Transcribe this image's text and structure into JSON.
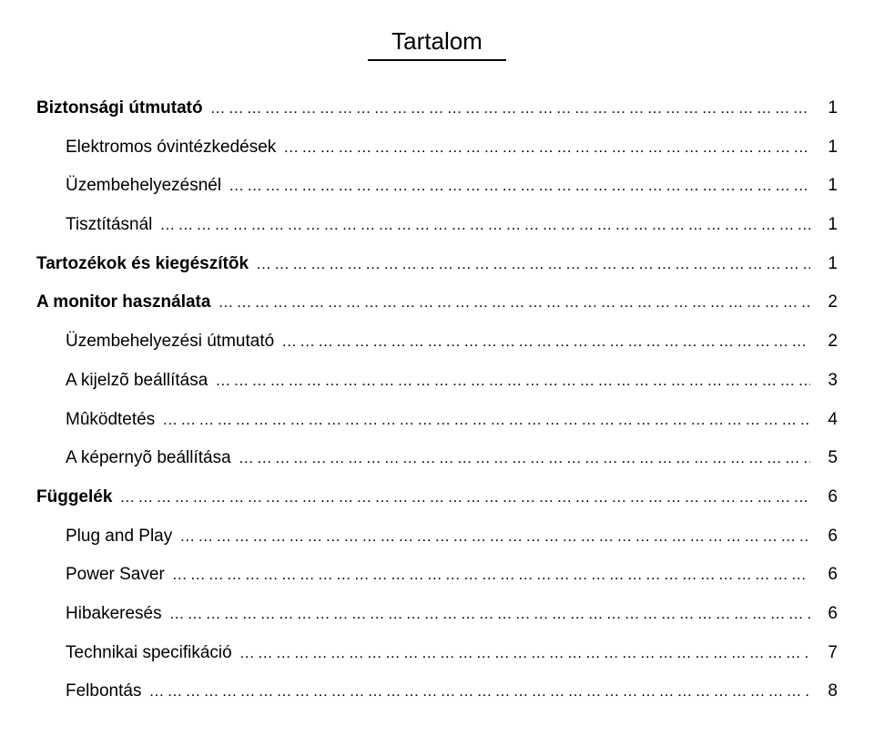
{
  "title": "Tartalom",
  "dots": "…………………………………………………………………………………………………………………………………………………………………………………………………………",
  "toc": [
    {
      "label": "Biztonsági útmutató",
      "page": "1",
      "level": 0,
      "bold": true,
      "name": "toc-safety-guide"
    },
    {
      "label": "Elektromos óvintézkedések",
      "page": "1",
      "level": 1,
      "bold": false,
      "name": "toc-electrical-precautions"
    },
    {
      "label": "Üzembehelyezésnél",
      "page": "1",
      "level": 1,
      "bold": false,
      "name": "toc-during-installation"
    },
    {
      "label": "Tisztításnál",
      "page": "1",
      "level": 1,
      "bold": false,
      "name": "toc-during-cleaning"
    },
    {
      "label": "Tartozékok és kiegészítõk",
      "page": "1",
      "level": 0,
      "bold": true,
      "name": "toc-accessories"
    },
    {
      "label": "A monitor használata",
      "page": "2",
      "level": 0,
      "bold": true,
      "name": "toc-monitor-usage"
    },
    {
      "label": "Üzembehelyezési útmutató",
      "page": "2",
      "level": 1,
      "bold": false,
      "name": "toc-installation-guide"
    },
    {
      "label": "A kijelzõ beállítása",
      "page": "3",
      "level": 1,
      "bold": false,
      "name": "toc-display-settings"
    },
    {
      "label": "Mûködtetés",
      "page": "4",
      "level": 1,
      "bold": false,
      "name": "toc-operation"
    },
    {
      "label": "A képernyõ beállítása",
      "page": "5",
      "level": 1,
      "bold": false,
      "name": "toc-screen-settings"
    },
    {
      "label": "Függelék",
      "page": "6",
      "level": 0,
      "bold": true,
      "name": "toc-appendix"
    },
    {
      "label": "Plug and Play",
      "page": "6",
      "level": 1,
      "bold": false,
      "name": "toc-plug-and-play"
    },
    {
      "label": "Power Saver",
      "page": "6",
      "level": 1,
      "bold": false,
      "name": "toc-power-saver"
    },
    {
      "label": "Hibakeresés",
      "page": "6",
      "level": 1,
      "bold": false,
      "name": "toc-troubleshooting"
    },
    {
      "label": "Technikai specifikáció",
      "page": "7",
      "level": 1,
      "bold": false,
      "name": "toc-tech-spec"
    },
    {
      "label": "Felbontás",
      "page": "8",
      "level": 1,
      "bold": false,
      "name": "toc-resolution"
    }
  ],
  "colors": {
    "text": "#000000",
    "background": "#ffffff",
    "underline": "#000000"
  },
  "typography": {
    "title_fontsize_pt": 20,
    "row_fontsize_pt": 14,
    "font_family": "Arial"
  }
}
